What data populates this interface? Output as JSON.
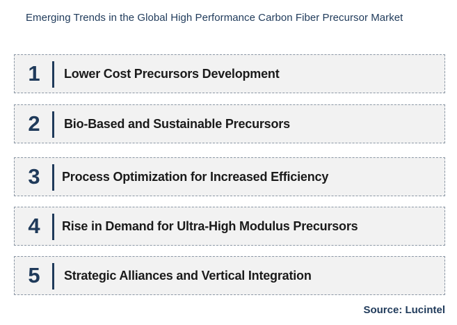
{
  "title": "Emerging Trends in the Global High Performance Carbon Fiber Precursor Market",
  "items": [
    {
      "number": "1",
      "label": "Lower Cost Precursors Development"
    },
    {
      "number": "2",
      "label": "Bio-Based and Sustainable Precursors"
    },
    {
      "number": "3",
      "label": "Process Optimization for Increased Efficiency"
    },
    {
      "number": "4",
      "label": "Rise in Demand for Ultra-High Modulus Precursors"
    },
    {
      "number": "5",
      "label": "Strategic Alliances and Vertical Integration"
    }
  ],
  "source": "Source: Lucintel",
  "colors": {
    "accent": "#1f3a5a",
    "box_fill": "#f2f2f2",
    "box_border": "#8a96a4",
    "label_text": "#1a1a1a"
  }
}
